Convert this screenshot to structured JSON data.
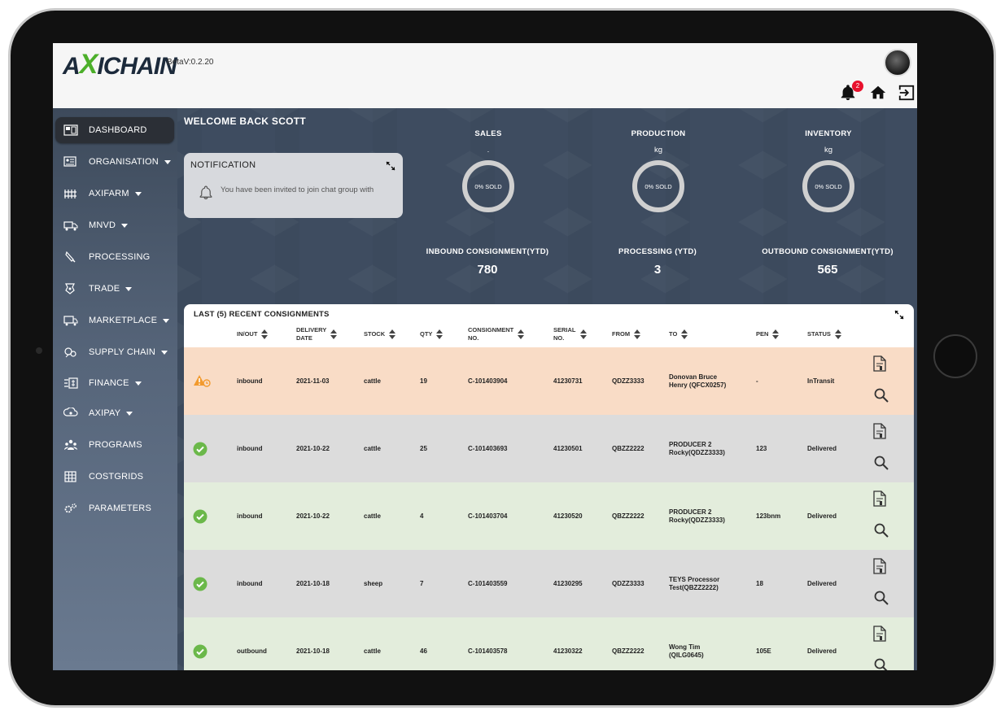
{
  "header": {
    "logo_text_a": "A",
    "logo_text_x": "X",
    "logo_text_rest": "ICHAIN",
    "version": "BetaV:0.2.20",
    "notification_count": "2"
  },
  "sidebar": {
    "items": [
      {
        "label": "DASHBOARD",
        "icon": "dashboard-icon",
        "has_caret": false,
        "active": true
      },
      {
        "label": "ORGANISATION",
        "icon": "organisation-icon",
        "has_caret": true
      },
      {
        "label": "AXIFARM",
        "icon": "farm-icon",
        "has_caret": true
      },
      {
        "label": "MNVD",
        "icon": "truck-icon",
        "has_caret": true
      },
      {
        "label": "PROCESSING",
        "icon": "knife-icon",
        "has_caret": false
      },
      {
        "label": "TRADE",
        "icon": "trade-icon",
        "has_caret": true
      },
      {
        "label": "MARKETPLACE",
        "icon": "marketplace-icon",
        "has_caret": true
      },
      {
        "label": "SUPPLY CHAIN",
        "icon": "supply-chain-icon",
        "has_caret": true
      },
      {
        "label": "FINANCE",
        "icon": "finance-icon",
        "has_caret": true
      },
      {
        "label": "AXIPAY",
        "icon": "axipay-icon",
        "has_caret": true
      },
      {
        "label": "PROGRAMS",
        "icon": "programs-icon",
        "has_caret": false
      },
      {
        "label": "COSTGRIDS",
        "icon": "grid-icon",
        "has_caret": false
      },
      {
        "label": "PARAMETERS",
        "icon": "parameters-icon",
        "has_caret": false
      }
    ]
  },
  "main": {
    "welcome": "WELCOME BACK SCOTT",
    "notification": {
      "title": "NOTIFICATION",
      "message": "You have been invited to join chat group with"
    },
    "stats": [
      {
        "title": "SALES",
        "unit": ".",
        "donut_label": "0% SOLD"
      },
      {
        "title": "PRODUCTION",
        "unit": "kg",
        "donut_label": "0% SOLD"
      },
      {
        "title": "INVENTORY",
        "unit": "kg",
        "donut_label": "0% SOLD"
      }
    ],
    "kpis": [
      {
        "label": "INBOUND CONSIGNMENT(YTD)",
        "value": "780"
      },
      {
        "label": "PROCESSING (YTD)",
        "value": "3"
      },
      {
        "label": "OUTBOUND CONSIGNMENT(YTD)",
        "value": "565"
      }
    ]
  },
  "table": {
    "title": "LAST (5) RECENT CONSIGNMENTS",
    "headers": {
      "inout": "IN/OUT",
      "delivery_1": "DELIVERY",
      "delivery_2": "DATE",
      "stock": "STOCK",
      "qty": "QTY",
      "consignment_1": "CONSIGNMENT",
      "consignment_2": "NO.",
      "serial_1": "SERIAL",
      "serial_2": "NO.",
      "from": "FROM",
      "to": "TO",
      "pen": "PEN",
      "status": "STATUS"
    },
    "rows": [
      {
        "state": "warning",
        "bg": "#f9dcc6",
        "inout": "inbound",
        "date": "2021-11-03",
        "stock": "cattle",
        "qty": "19",
        "consignment": "C-101403904",
        "serial": "41230731",
        "from": "QDZZ3333",
        "to_1": "Donovan Bruce",
        "to_2": "Henry (QFCX0257)",
        "pen": "-",
        "status": "InTransit"
      },
      {
        "state": "ok",
        "bg": "#dcdcdc",
        "inout": "inbound",
        "date": "2021-10-22",
        "stock": "cattle",
        "qty": "25",
        "consignment": "C-101403693",
        "serial": "41230501",
        "from": "QBZZ2222",
        "to_1": "PRODUCER 2",
        "to_2": "Rocky(QDZZ3333)",
        "pen": "123",
        "status": "Delivered"
      },
      {
        "state": "ok",
        "bg": "#e3eddc",
        "inout": "inbound",
        "date": "2021-10-22",
        "stock": "cattle",
        "qty": "4",
        "consignment": "C-101403704",
        "serial": "41230520",
        "from": "QBZZ2222",
        "to_1": "PRODUCER 2",
        "to_2": "Rocky(QDZZ3333)",
        "pen": "123bnm",
        "status": "Delivered"
      },
      {
        "state": "ok",
        "bg": "#dcdcdc",
        "inout": "inbound",
        "date": "2021-10-18",
        "stock": "sheep",
        "qty": "7",
        "consignment": "C-101403559",
        "serial": "41230295",
        "from": "QDZZ3333",
        "to_1": "TEYS Processor",
        "to_2": "Test(QBZZ2222)",
        "pen": "18",
        "status": "Delivered"
      },
      {
        "state": "ok",
        "bg": "#e3eddc",
        "inout": "outbound",
        "date": "2021-10-18",
        "stock": "cattle",
        "qty": "46",
        "consignment": "C-101403578",
        "serial": "41230322",
        "from": "QBZZ2222",
        "to_1": "Wong Tim",
        "to_2": "(QILG0645)",
        "pen": "105E",
        "status": "Delivered"
      }
    ]
  },
  "colors": {
    "accent_green": "#4caf2a",
    "ok_green": "#6bb84a",
    "warning_orange": "#f29a2e",
    "badge_red": "#e8112d"
  }
}
